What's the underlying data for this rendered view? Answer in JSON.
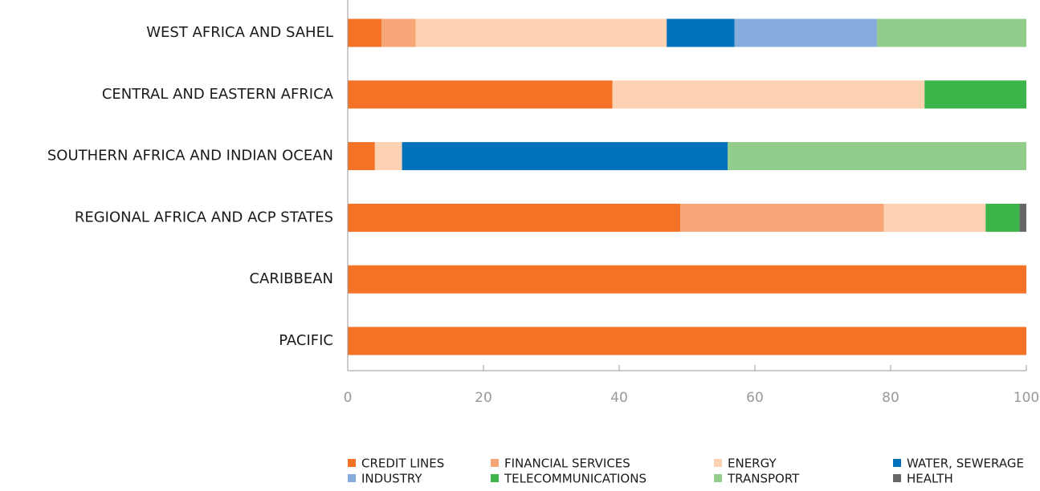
{
  "chart_data": {
    "type": "stacked_bar_horizontal",
    "categories": [
      "WEST AFRICA AND SAHEL",
      "CENTRAL AND EASTERN AFRICA",
      "SOUTHERN AFRICA AND INDIAN OCEAN",
      "REGIONAL AFRICA AND ACP STATES",
      "CARIBBEAN",
      "PACIFIC"
    ],
    "series": [
      {
        "name": "CREDIT LINES",
        "color": "#f47226",
        "values": [
          5,
          39,
          4,
          49,
          100,
          100
        ]
      },
      {
        "name": "FINANCIAL SERVICES",
        "color": "#f7a777",
        "values": [
          5,
          0,
          0,
          30,
          0,
          0
        ]
      },
      {
        "name": "ENERGY",
        "color": "#fdd2b3",
        "values": [
          37,
          46,
          4,
          15,
          0,
          0
        ]
      },
      {
        "name": "WATER, SEWERAGE",
        "color": "#0071bb",
        "values": [
          10,
          0,
          48,
          0,
          0,
          0
        ]
      },
      {
        "name": "INDUSTRY",
        "color": "#85acdc",
        "values": [
          21,
          0,
          0,
          0,
          0,
          0
        ]
      },
      {
        "name": "TELECOMMUNICATIONS",
        "color": "#3db54a",
        "values": [
          0,
          15,
          0,
          5,
          0,
          0
        ]
      },
      {
        "name": "TRANSPORT",
        "color": "#92cd8c",
        "values": [
          22,
          0,
          44,
          0,
          0,
          0
        ]
      },
      {
        "name": "HEALTH",
        "color": "#666666",
        "values": [
          0,
          0,
          0,
          1,
          0,
          0
        ]
      }
    ],
    "xlim": [
      0,
      100
    ],
    "xticks": [
      0,
      20,
      40,
      60,
      80,
      100
    ]
  }
}
